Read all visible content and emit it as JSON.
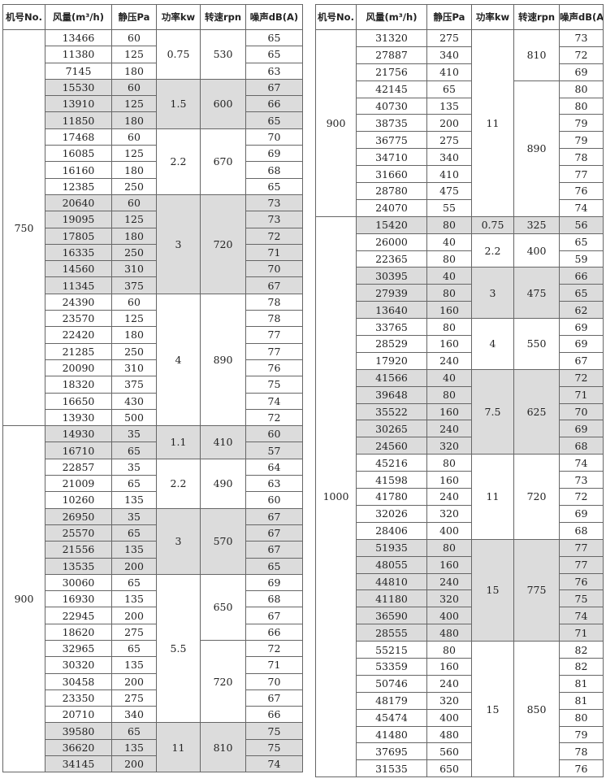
{
  "tables": [
    {
      "headers": [
        "机号No.",
        "风量(m³/h)",
        "静压Pa",
        "功率kw",
        "转速rpn",
        "噪声dB(A)"
      ],
      "models": [
        {
          "no": "750",
          "powers": [
            {
              "kw": 0.75,
              "shaded": false,
              "speeds": [
                {
                  "rpm": 530,
                  "rows": [
                    [
                      13466,
                      60,
                      65
                    ],
                    [
                      11380,
                      125,
                      65
                    ],
                    [
                      7145,
                      180,
                      63
                    ]
                  ]
                }
              ]
            },
            {
              "kw": 1.5,
              "shaded": true,
              "speeds": [
                {
                  "rpm": 600,
                  "rows": [
                    [
                      15530,
                      60,
                      67
                    ],
                    [
                      13910,
                      125,
                      66
                    ],
                    [
                      11850,
                      180,
                      65
                    ]
                  ]
                }
              ]
            },
            {
              "kw": 2.2,
              "shaded": false,
              "speeds": [
                {
                  "rpm": 670,
                  "rows": [
                    [
                      17468,
                      60,
                      70
                    ],
                    [
                      16085,
                      125,
                      69
                    ],
                    [
                      16160,
                      180,
                      68
                    ],
                    [
                      12385,
                      250,
                      65
                    ]
                  ]
                }
              ]
            },
            {
              "kw": 3,
              "shaded": true,
              "speeds": [
                {
                  "rpm": 720,
                  "rows": [
                    [
                      20640,
                      60,
                      73
                    ],
                    [
                      19095,
                      125,
                      73
                    ],
                    [
                      17805,
                      180,
                      72
                    ],
                    [
                      16335,
                      250,
                      71
                    ],
                    [
                      14560,
                      310,
                      70
                    ],
                    [
                      11345,
                      375,
                      67
                    ]
                  ]
                }
              ]
            },
            {
              "kw": 4,
              "shaded": false,
              "speeds": [
                {
                  "rpm": 890,
                  "rows": [
                    [
                      24390,
                      60,
                      78
                    ],
                    [
                      23570,
                      125,
                      78
                    ],
                    [
                      22420,
                      180,
                      77
                    ],
                    [
                      21285,
                      250,
                      77
                    ],
                    [
                      20090,
                      310,
                      76
                    ],
                    [
                      18320,
                      375,
                      75
                    ],
                    [
                      16650,
                      430,
                      74
                    ],
                    [
                      13930,
                      500,
                      72
                    ]
                  ]
                }
              ]
            }
          ]
        },
        {
          "no": "900",
          "powers": [
            {
              "kw": 1.1,
              "shaded": true,
              "speeds": [
                {
                  "rpm": 410,
                  "rows": [
                    [
                      14930,
                      35,
                      60
                    ],
                    [
                      16710,
                      65,
                      57
                    ]
                  ]
                }
              ]
            },
            {
              "kw": 2.2,
              "shaded": false,
              "speeds": [
                {
                  "rpm": 490,
                  "rows": [
                    [
                      22857,
                      35,
                      64
                    ],
                    [
                      21009,
                      65,
                      63
                    ],
                    [
                      10260,
                      135,
                      60
                    ]
                  ]
                }
              ]
            },
            {
              "kw": 3,
              "shaded": true,
              "speeds": [
                {
                  "rpm": 570,
                  "rows": [
                    [
                      26950,
                      35,
                      67
                    ],
                    [
                      25570,
                      65,
                      67
                    ],
                    [
                      21556,
                      135,
                      67
                    ],
                    [
                      13535,
                      200,
                      65
                    ]
                  ]
                }
              ]
            },
            {
              "kw": 5.5,
              "shaded": false,
              "speeds": [
                {
                  "rpm": 650,
                  "rows": [
                    [
                      30060,
                      65,
                      69
                    ],
                    [
                      16930,
                      135,
                      68
                    ],
                    [
                      22945,
                      200,
                      67
                    ],
                    [
                      18620,
                      275,
                      66
                    ]
                  ]
                },
                {
                  "rpm": 720,
                  "rows": [
                    [
                      32965,
                      65,
                      72
                    ],
                    [
                      30320,
                      135,
                      71
                    ],
                    [
                      30458,
                      200,
                      70
                    ],
                    [
                      23350,
                      275,
                      67
                    ],
                    [
                      20710,
                      340,
                      66
                    ]
                  ]
                }
              ]
            },
            {
              "kw": 11,
              "shaded": true,
              "speeds": [
                {
                  "rpm": 810,
                  "rows": [
                    [
                      39580,
                      65,
                      75
                    ],
                    [
                      36620,
                      135,
                      75
                    ],
                    [
                      34145,
                      200,
                      74
                    ]
                  ]
                }
              ]
            }
          ]
        }
      ]
    },
    {
      "headers": [
        "机号No.",
        "风量(m³/h)",
        "静压Pa",
        "功率kw",
        "转速rpn",
        "噪声dB(A)"
      ],
      "models": [
        {
          "no": "900",
          "powers": [
            {
              "kw": 11,
              "shaded": false,
              "speeds": [
                {
                  "rpm": 810,
                  "rows": [
                    [
                      31320,
                      275,
                      73
                    ],
                    [
                      27887,
                      340,
                      72
                    ],
                    [
                      21756,
                      410,
                      69
                    ]
                  ]
                },
                {
                  "rpm": 890,
                  "rows": [
                    [
                      42145,
                      65,
                      80
                    ],
                    [
                      40730,
                      135,
                      80
                    ],
                    [
                      38735,
                      200,
                      79
                    ],
                    [
                      36775,
                      275,
                      79
                    ],
                    [
                      34710,
                      340,
                      78
                    ],
                    [
                      31660,
                      410,
                      77
                    ],
                    [
                      28780,
                      475,
                      76
                    ],
                    [
                      24070,
                      55,
                      74
                    ]
                  ]
                }
              ]
            }
          ]
        },
        {
          "no": "1000",
          "powers": [
            {
              "kw": 0.75,
              "shaded": true,
              "speeds": [
                {
                  "rpm": 325,
                  "rows": [
                    [
                      15420,
                      80,
                      56
                    ]
                  ]
                }
              ]
            },
            {
              "kw": 2.2,
              "shaded": false,
              "speeds": [
                {
                  "rpm": 400,
                  "rows": [
                    [
                      26000,
                      40,
                      65
                    ],
                    [
                      22365,
                      80,
                      59
                    ]
                  ]
                }
              ]
            },
            {
              "kw": 3,
              "shaded": true,
              "speeds": [
                {
                  "rpm": 475,
                  "rows": [
                    [
                      30395,
                      40,
                      66
                    ],
                    [
                      27939,
                      80,
                      65
                    ],
                    [
                      13640,
                      160,
                      62
                    ]
                  ]
                }
              ]
            },
            {
              "kw": 4,
              "shaded": false,
              "speeds": [
                {
                  "rpm": 550,
                  "rows": [
                    [
                      33765,
                      80,
                      69
                    ],
                    [
                      28529,
                      160,
                      69
                    ],
                    [
                      17920,
                      240,
                      67
                    ]
                  ]
                }
              ]
            },
            {
              "kw": 7.5,
              "shaded": true,
              "speeds": [
                {
                  "rpm": 625,
                  "rows": [
                    [
                      41566,
                      40,
                      72
                    ],
                    [
                      39648,
                      80,
                      71
                    ],
                    [
                      35522,
                      160,
                      70
                    ],
                    [
                      30265,
                      240,
                      69
                    ],
                    [
                      24560,
                      320,
                      68
                    ]
                  ]
                }
              ]
            },
            {
              "kw": 11,
              "shaded": false,
              "speeds": [
                {
                  "rpm": 720,
                  "rows": [
                    [
                      45216,
                      80,
                      74
                    ],
                    [
                      41598,
                      160,
                      73
                    ],
                    [
                      41780,
                      240,
                      72
                    ],
                    [
                      32026,
                      320,
                      69
                    ],
                    [
                      28406,
                      400,
                      68
                    ]
                  ]
                }
              ]
            },
            {
              "kw": 15,
              "shaded": true,
              "speeds": [
                {
                  "rpm": 775,
                  "rows": [
                    [
                      51935,
                      80,
                      77
                    ],
                    [
                      48055,
                      160,
                      77
                    ],
                    [
                      44810,
                      240,
                      76
                    ],
                    [
                      41180,
                      320,
                      75
                    ],
                    [
                      36590,
                      400,
                      74
                    ],
                    [
                      28555,
                      480,
                      71
                    ]
                  ]
                }
              ]
            },
            {
              "kw": 15,
              "shaded": false,
              "speeds": [
                {
                  "rpm": 850,
                  "rows": [
                    [
                      55215,
                      80,
                      82
                    ],
                    [
                      53359,
                      160,
                      82
                    ],
                    [
                      50746,
                      240,
                      81
                    ],
                    [
                      48179,
                      320,
                      81
                    ],
                    [
                      45474,
                      400,
                      80
                    ],
                    [
                      41480,
                      480,
                      79
                    ],
                    [
                      37695,
                      560,
                      78
                    ],
                    [
                      31535,
                      650,
                      76
                    ]
                  ]
                }
              ]
            }
          ]
        }
      ]
    }
  ]
}
